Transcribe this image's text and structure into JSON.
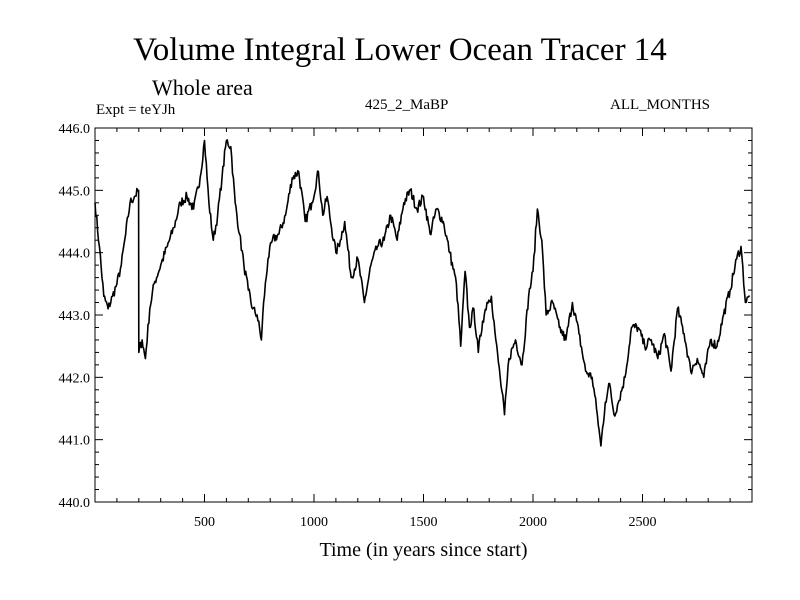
{
  "chart_data": {
    "type": "line",
    "title": "Volume Integral Lower Ocean Tracer 14",
    "subtitle": "Whole area",
    "experiment": "Expt = teYJh",
    "run_label": "425_2_MaBP",
    "period_label": "ALL_MONTHS",
    "xlabel": "Time (in years since start)",
    "ylabel": "",
    "xlim": [
      0,
      3000
    ],
    "ylim": [
      440.0,
      446.0
    ],
    "x_ticks": [
      500,
      1000,
      1500,
      2000,
      2500
    ],
    "x_tick_labels": [
      "500",
      "1000",
      "1500",
      "2000",
      "2500"
    ],
    "y_ticks": [
      440.0,
      441.0,
      442.0,
      443.0,
      444.0,
      445.0,
      446.0
    ],
    "y_tick_labels": [
      "440.0",
      "441.0",
      "442.0",
      "443.0",
      "444.0",
      "445.0",
      "446.0"
    ],
    "grid": false,
    "series": [
      {
        "name": "Lower Ocean Tracer 14",
        "color": "#000000",
        "x": [
          0,
          20,
          40,
          60,
          80,
          100,
          120,
          140,
          160,
          180,
          199,
          200,
          215,
          230,
          250,
          270,
          300,
          330,
          360,
          390,
          420,
          450,
          480,
          500,
          520,
          540,
          560,
          580,
          600,
          620,
          640,
          660,
          680,
          700,
          720,
          740,
          760,
          770,
          790,
          810,
          840,
          870,
          900,
          930,
          960,
          990,
          1020,
          1040,
          1060,
          1080,
          1100,
          1120,
          1140,
          1170,
          1200,
          1230,
          1260,
          1290,
          1320,
          1350,
          1380,
          1410,
          1440,
          1470,
          1500,
          1530,
          1560,
          1590,
          1620,
          1650,
          1670,
          1690,
          1710,
          1730,
          1750,
          1770,
          1790,
          1810,
          1830,
          1850,
          1870,
          1890,
          1920,
          1950,
          1980,
          2000,
          2020,
          2040,
          2060,
          2090,
          2120,
          2150,
          2180,
          2210,
          2240,
          2270,
          2290,
          2310,
          2330,
          2350,
          2370,
          2390,
          2420,
          2450,
          2480,
          2510,
          2540,
          2570,
          2600,
          2630,
          2660,
          2690,
          2720,
          2750,
          2780,
          2810,
          2840,
          2870,
          2900,
          2930,
          2950,
          2970,
          2990
        ],
        "y": [
          444.8,
          444.1,
          443.3,
          443.1,
          443.3,
          443.5,
          443.8,
          444.3,
          444.8,
          444.9,
          445.0,
          442.4,
          442.6,
          442.3,
          443.1,
          443.5,
          443.8,
          444.1,
          444.4,
          444.8,
          444.9,
          444.7,
          445.2,
          445.8,
          444.8,
          444.2,
          444.6,
          445.2,
          445.8,
          445.7,
          444.8,
          444.3,
          443.8,
          443.4,
          443.1,
          443.0,
          442.6,
          443.2,
          443.9,
          444.2,
          444.3,
          444.6,
          445.2,
          445.3,
          444.5,
          444.8,
          445.3,
          444.6,
          444.9,
          444.4,
          444.0,
          444.2,
          444.5,
          443.6,
          443.9,
          443.2,
          443.8,
          444.1,
          444.2,
          444.6,
          444.2,
          444.8,
          445.0,
          444.7,
          444.9,
          444.3,
          444.7,
          444.5,
          444.0,
          443.5,
          442.5,
          443.7,
          442.8,
          443.1,
          442.4,
          442.9,
          443.2,
          443.3,
          442.6,
          442.0,
          441.4,
          442.3,
          442.6,
          442.2,
          443.3,
          443.7,
          444.7,
          444.2,
          443.0,
          443.2,
          442.8,
          442.6,
          443.2,
          442.7,
          442.1,
          442.0,
          441.5,
          440.9,
          441.6,
          441.9,
          441.4,
          441.6,
          442.0,
          442.8,
          442.8,
          442.5,
          442.6,
          442.3,
          442.7,
          442.1,
          443.1,
          442.7,
          442.1,
          442.3,
          442.0,
          442.6,
          442.5,
          443.0,
          443.4,
          443.9,
          444.1,
          443.2,
          443.3
        ]
      }
    ]
  }
}
